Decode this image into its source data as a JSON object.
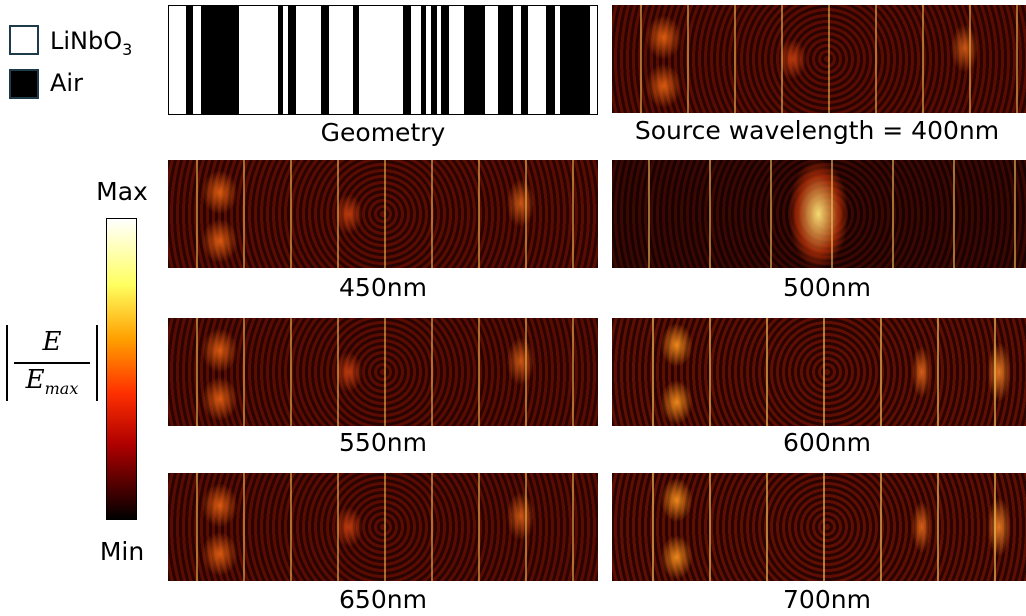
{
  "legend": [
    {
      "label": "LiNbO",
      "subscript": "3"
    },
    {
      "label": "Air"
    }
  ],
  "panels": [
    {
      "caption": "Geometry"
    },
    {
      "caption": "Source wavelength = 400nm"
    },
    {
      "caption": "450nm"
    },
    {
      "caption": "500nm"
    },
    {
      "caption": "550nm"
    },
    {
      "caption": "600nm"
    },
    {
      "caption": "650nm"
    },
    {
      "caption": "700nm"
    }
  ],
  "colorbar": {
    "max_label": "Max",
    "min_label": "Min",
    "numerator": "E",
    "denominator": "E",
    "denominator_subscript": "max"
  }
}
